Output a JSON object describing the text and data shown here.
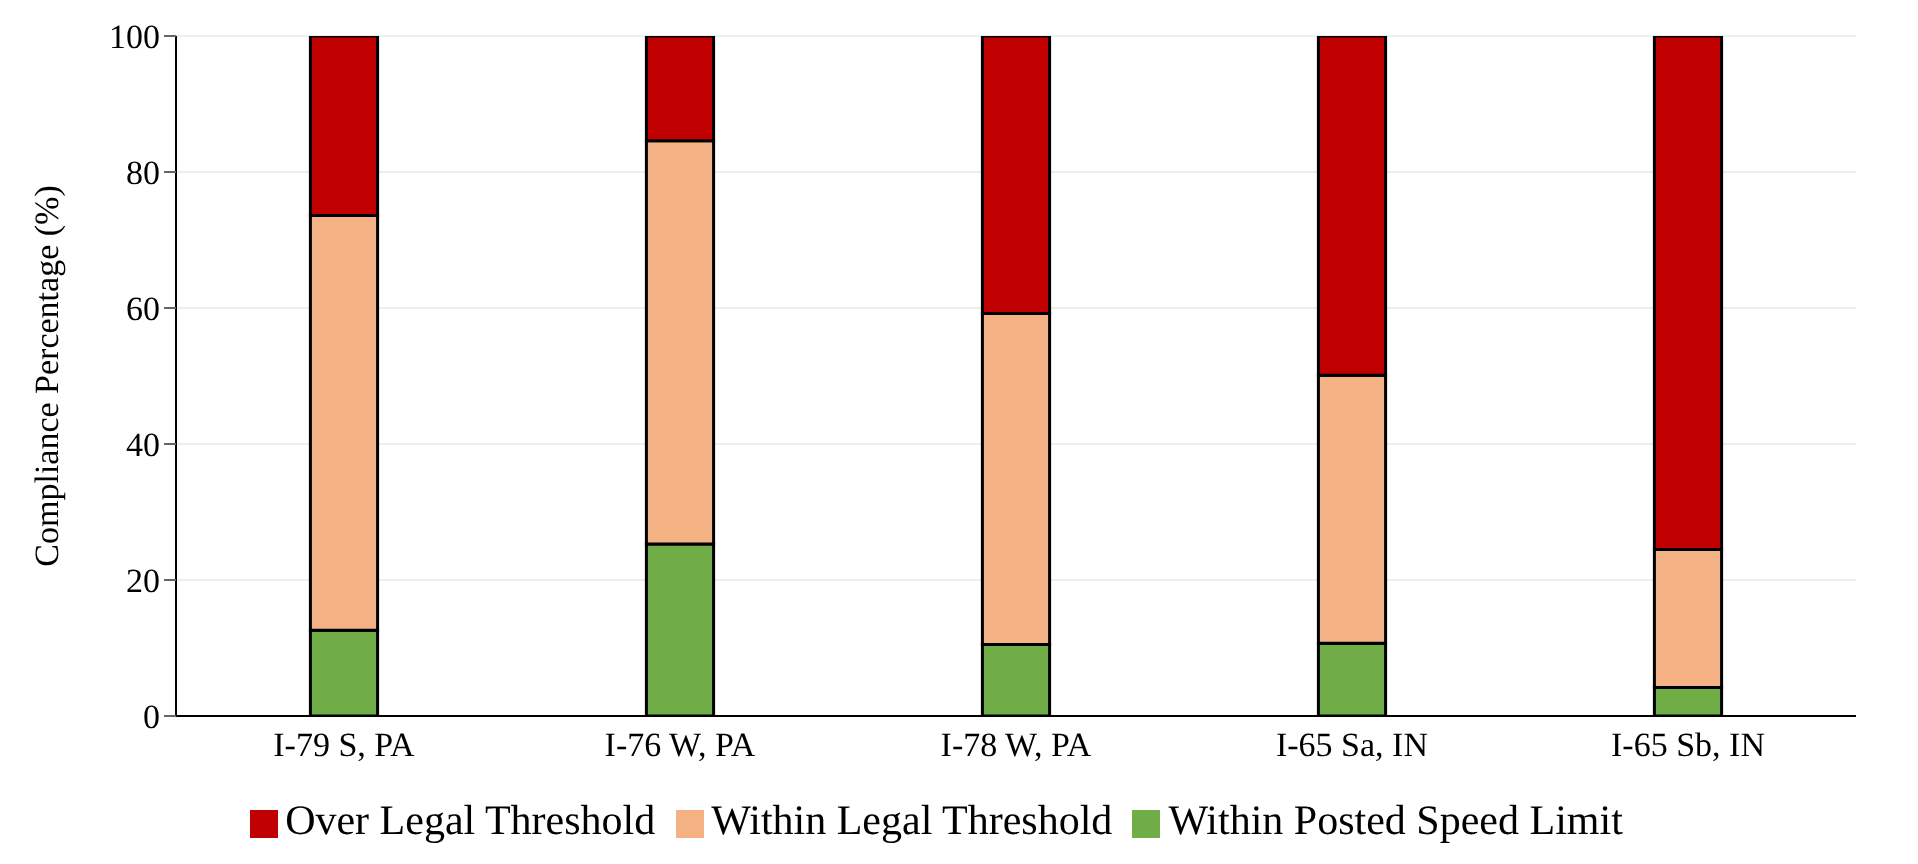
{
  "chart_data": {
    "type": "bar",
    "stacked": true,
    "ylabel": "Compliance Percentage (%)",
    "categories": [
      "I-79 S, PA",
      "I-76 W, PA",
      "I-78 W, PA",
      "I-65 Sa, IN",
      "I-65 Sb, IN"
    ],
    "series": [
      {
        "name": "Within Posted Speed Limit",
        "color": "#70ad47",
        "values": [
          12.6,
          25.3,
          10.5,
          10.7,
          4.2
        ]
      },
      {
        "name": "Within Legal Threshold",
        "color": "#f4b183",
        "values": [
          61.0,
          59.3,
          48.7,
          39.4,
          20.3
        ]
      },
      {
        "name": "Over Legal Threshold",
        "color": "#c00000",
        "values": [
          26.4,
          15.4,
          40.8,
          49.9,
          75.5
        ]
      }
    ],
    "ylim": [
      0,
      100
    ],
    "yticks": [
      0,
      20,
      40,
      60,
      80,
      100
    ],
    "grid": "y",
    "legend": "bottom"
  }
}
